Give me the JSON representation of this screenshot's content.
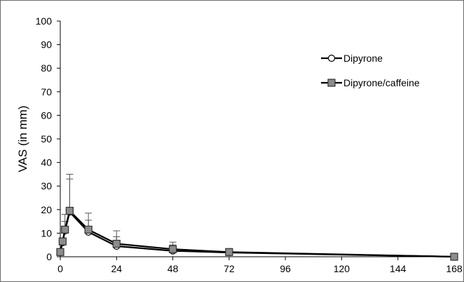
{
  "chart_data": {
    "type": "line",
    "title": "",
    "xlabel": "",
    "ylabel": "VAS (in mm)",
    "xlim": [
      0,
      168
    ],
    "ylim": [
      0,
      100
    ],
    "x_ticks": [
      0,
      24,
      48,
      72,
      96,
      120,
      144,
      168
    ],
    "y_ticks": [
      0,
      10,
      20,
      30,
      40,
      50,
      60,
      70,
      80,
      90,
      100
    ],
    "grid": false,
    "legend_position": "top-right",
    "series": [
      {
        "name": "Dipyrone",
        "marker": "circle",
        "color": "#000000",
        "marker_fill": "#ffffff",
        "points": [
          {
            "x": 0,
            "y": 2,
            "err": 0
          },
          {
            "x": 1,
            "y": 6,
            "err": 0
          },
          {
            "x": 2,
            "y": 11,
            "err": 4
          },
          {
            "x": 4,
            "y": 19,
            "err": 14
          },
          {
            "x": 12,
            "y": 10.5,
            "err": 5
          },
          {
            "x": 24,
            "y": 4.5,
            "err": 4
          },
          {
            "x": 48,
            "y": 2.5,
            "err": 2.5
          },
          {
            "x": 72,
            "y": 1.8,
            "err": 0.5
          },
          {
            "x": 168,
            "y": 0,
            "err": 0
          }
        ]
      },
      {
        "name": "Dipyrone/caffeine",
        "marker": "square",
        "color": "#000000",
        "marker_fill": "#8c8c8c",
        "points": [
          {
            "x": 0,
            "y": 2,
            "err": 0
          },
          {
            "x": 1,
            "y": 6.5,
            "err": 0
          },
          {
            "x": 2,
            "y": 11.5,
            "err": 6.5
          },
          {
            "x": 4,
            "y": 19.5,
            "err": 15.5
          },
          {
            "x": 12,
            "y": 11.5,
            "err": 7
          },
          {
            "x": 24,
            "y": 5.5,
            "err": 5.5
          },
          {
            "x": 48,
            "y": 3.2,
            "err": 3
          },
          {
            "x": 72,
            "y": 2,
            "err": 0.8
          },
          {
            "x": 168,
            "y": 0,
            "err": 0
          }
        ]
      }
    ]
  }
}
